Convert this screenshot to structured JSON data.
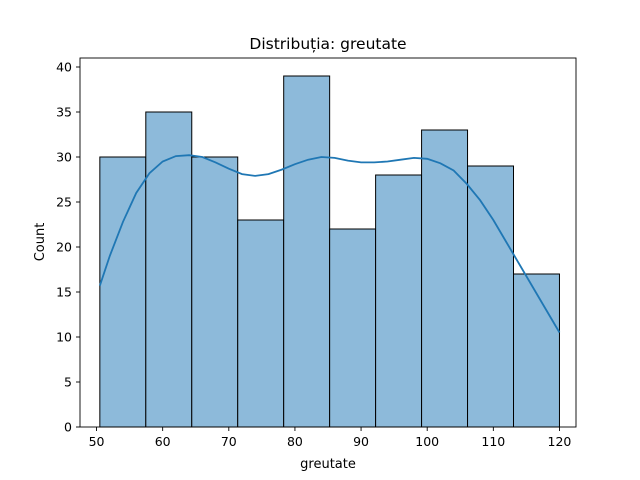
{
  "chart_data": {
    "type": "bar",
    "title": "Distribuția: greutate",
    "xlabel": "greutate",
    "ylabel": "Count",
    "xlim": [
      47.5,
      122.5
    ],
    "ylim": [
      0,
      41
    ],
    "xticks": [
      50,
      60,
      70,
      80,
      90,
      100,
      110,
      120
    ],
    "yticks": [
      0,
      5,
      10,
      15,
      20,
      25,
      30,
      35,
      40
    ],
    "bins": [
      {
        "x0": 50.5,
        "x1": 57.45,
        "count": 30
      },
      {
        "x0": 57.45,
        "x1": 64.4,
        "count": 35
      },
      {
        "x0": 64.4,
        "x1": 71.35,
        "count": 30
      },
      {
        "x0": 71.35,
        "x1": 78.3,
        "count": 23
      },
      {
        "x0": 78.3,
        "x1": 85.25,
        "count": 39
      },
      {
        "x0": 85.25,
        "x1": 92.2,
        "count": 22
      },
      {
        "x0": 92.2,
        "x1": 99.15,
        "count": 28
      },
      {
        "x0": 99.15,
        "x1": 106.1,
        "count": 33
      },
      {
        "x0": 106.1,
        "x1": 113.05,
        "count": 29
      },
      {
        "x0": 113.05,
        "x1": 120.0,
        "count": 17
      }
    ],
    "kde": {
      "x": [
        50.5,
        52,
        54,
        56,
        58,
        60,
        62,
        64,
        66,
        68,
        70,
        72,
        74,
        76,
        78,
        80,
        82,
        84,
        86,
        88,
        90,
        92,
        94,
        96,
        98,
        100,
        102,
        104,
        106,
        108,
        110,
        112,
        114,
        116,
        118,
        120
      ],
      "y": [
        15.7,
        19.0,
        22.8,
        26.0,
        28.2,
        29.5,
        30.1,
        30.2,
        30.0,
        29.4,
        28.7,
        28.1,
        27.9,
        28.1,
        28.6,
        29.2,
        29.7,
        30.0,
        29.9,
        29.6,
        29.4,
        29.4,
        29.5,
        29.7,
        29.9,
        29.8,
        29.3,
        28.5,
        27.0,
        25.2,
        23.0,
        20.5,
        18.0,
        15.5,
        13.0,
        10.5
      ]
    },
    "grid": false,
    "colors": {
      "bar_fill": "#8dbada",
      "bar_edge": "#000000",
      "kde_line": "#1f77b4",
      "axis": "#000000"
    }
  }
}
